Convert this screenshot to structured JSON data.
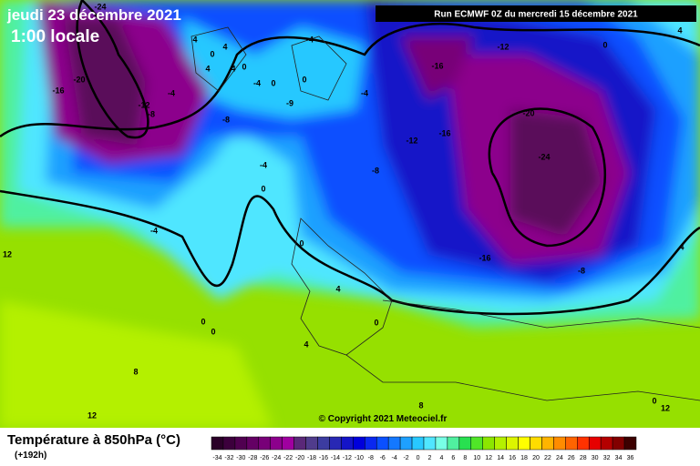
{
  "header": {
    "date": "jeudi 23 décembre 2021",
    "time": "1:00 locale",
    "run": "Run ECMWF 0Z du mercredi 15 décembre 2021"
  },
  "copyright": "© Copyright 2021 Meteociel.fr",
  "legend": {
    "title": "Température à 850hPa (°C)",
    "lead": "(+192h)",
    "ticks": [
      -34,
      -32,
      -30,
      -28,
      -26,
      -24,
      -22,
      -20,
      -18,
      -16,
      -14,
      -12,
      -10,
      -8,
      -6,
      -4,
      -2,
      0,
      2,
      4,
      6,
      8,
      10,
      12,
      14,
      16,
      18,
      20,
      22,
      24,
      26,
      28,
      30,
      32,
      34,
      36
    ],
    "colors": [
      "#2a0028",
      "#3c003c",
      "#500050",
      "#640064",
      "#780078",
      "#8c008c",
      "#a000a0",
      "#5a2878",
      "#503c8c",
      "#3c3ca0",
      "#2828b4",
      "#1414c8",
      "#0000dc",
      "#0a28f0",
      "#0a50ff",
      "#1478ff",
      "#1ea0ff",
      "#28c8ff",
      "#50e6ff",
      "#78ffe6",
      "#50f0a0",
      "#28e050",
      "#50e628",
      "#8ce600",
      "#b4f000",
      "#dcf500",
      "#ffff00",
      "#ffdc00",
      "#ffb400",
      "#ff8c00",
      "#ff6400",
      "#ff3200",
      "#e60000",
      "#b40000",
      "#820000",
      "#3c0000"
    ]
  },
  "contour_labels": [
    -24,
    -20,
    -16,
    -12,
    -8,
    4,
    4,
    0,
    4,
    4,
    -4,
    0,
    -4,
    0,
    0,
    -4,
    -8,
    -9,
    -4,
    -12,
    -16,
    0,
    4,
    -20,
    -12,
    -16,
    -24,
    -8,
    -4,
    0,
    -4,
    12,
    0,
    -16,
    -8,
    4,
    4,
    0,
    0,
    0,
    4,
    8,
    12,
    8,
    12,
    0
  ]
}
